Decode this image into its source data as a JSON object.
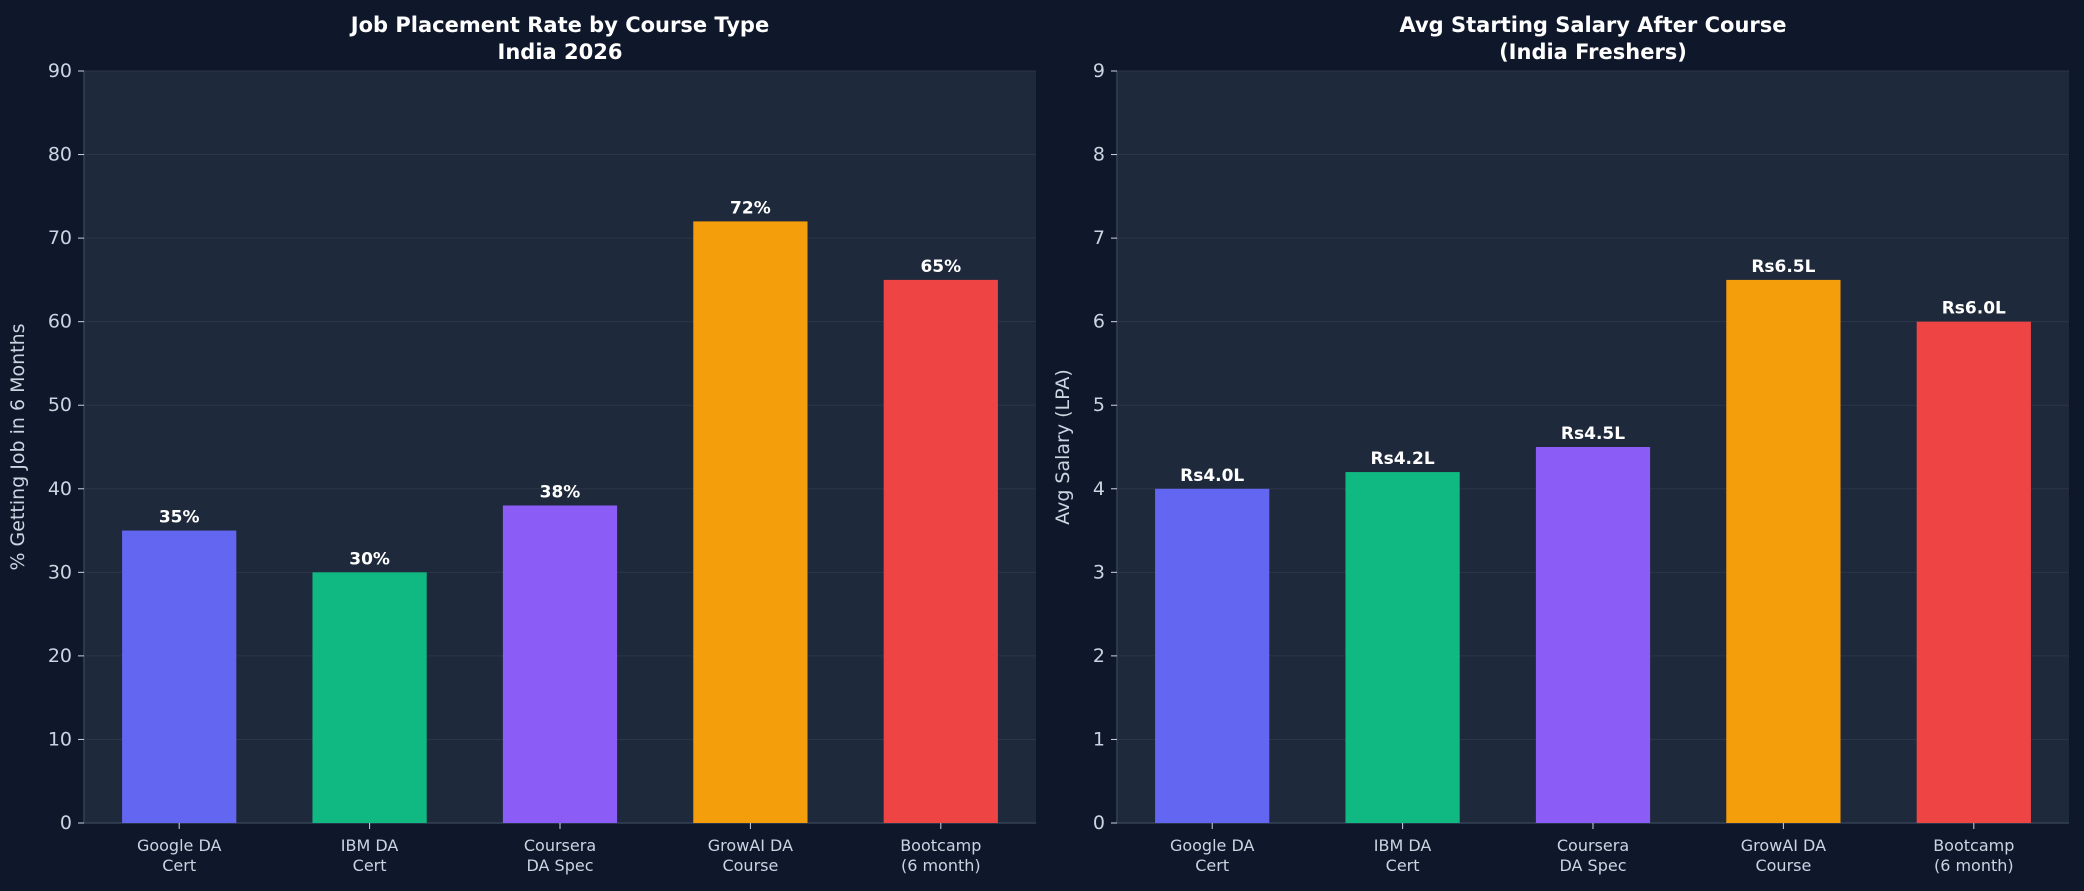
{
  "chart_data": [
    {
      "type": "bar",
      "title": "Job Placement Rate by Course Type\nIndia 2026",
      "xlabel": "",
      "ylabel": "% Getting Job in 6 Months",
      "categories": [
        "Google DA\nCert",
        "IBM DA\nCert",
        "Coursera\nDA Spec",
        "GrowAI DA\nCourse",
        "Bootcamp\n(6 month)"
      ],
      "values": [
        35,
        30,
        38,
        72,
        65
      ],
      "data_labels": [
        "35%",
        "30%",
        "38%",
        "72%",
        "65%"
      ],
      "bar_colors": [
        "#6366f1",
        "#10b981",
        "#8b5cf6",
        "#f59e0b",
        "#ef4444"
      ],
      "ylim": [
        0,
        90
      ],
      "yticks": [
        0,
        10,
        20,
        30,
        40,
        50,
        60,
        70,
        80,
        90
      ],
      "grid": true
    },
    {
      "type": "bar",
      "title": "Avg Starting Salary After Course\n(India Freshers)",
      "xlabel": "",
      "ylabel": "Avg Salary (LPA)",
      "categories": [
        "Google DA\nCert",
        "IBM DA\nCert",
        "Coursera\nDA Spec",
        "GrowAI DA\nCourse",
        "Bootcamp\n(6 month)"
      ],
      "values": [
        4.0,
        4.2,
        4.5,
        6.5,
        6.0
      ],
      "data_labels": [
        "Rs4.0L",
        "Rs4.2L",
        "Rs4.5L",
        "Rs6.5L",
        "Rs6.0L"
      ],
      "bar_colors": [
        "#6366f1",
        "#10b981",
        "#8b5cf6",
        "#f59e0b",
        "#ef4444"
      ],
      "ylim": [
        0,
        9
      ],
      "yticks": [
        0,
        1,
        2,
        3,
        4,
        5,
        6,
        7,
        8,
        9
      ],
      "grid": true
    }
  ],
  "theme": {
    "figure_bg": "#0f172a",
    "axes_bg": "#1e293b",
    "grid": "#2b3648",
    "spine": "#334155",
    "tick_text": "#cbd5e1",
    "title_text": "#ffffff",
    "label_text": "#ffffff"
  }
}
